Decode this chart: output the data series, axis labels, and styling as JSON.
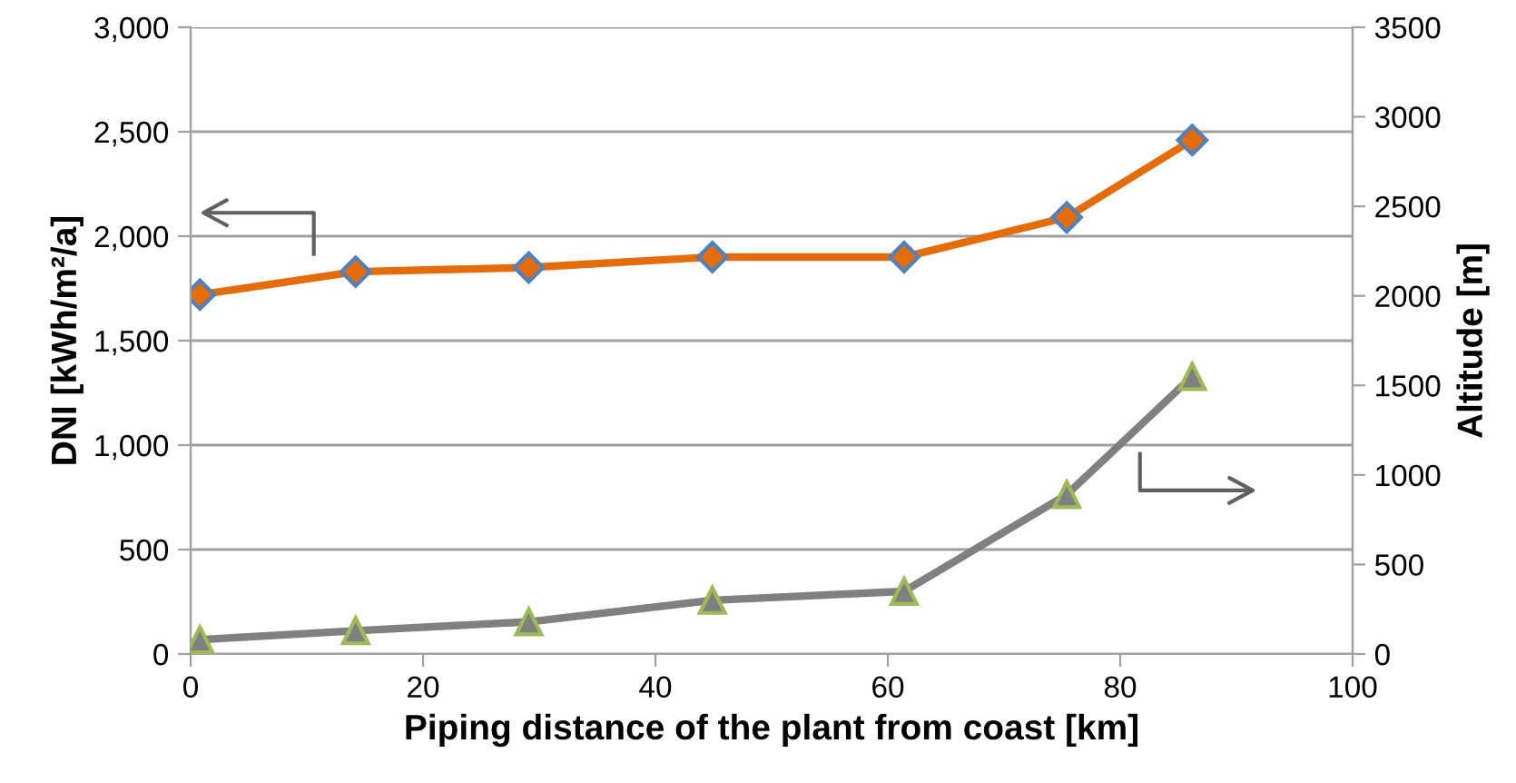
{
  "chart_data": {
    "type": "line",
    "xlabel": "Piping distance of the plant from coast [km]",
    "ylabel": "DNI [kWh/m²/a]",
    "y2label": "Altitude [m]",
    "xlim": [
      0,
      100
    ],
    "xticks": [
      0,
      20,
      40,
      60,
      80,
      100
    ],
    "ylim": [
      0,
      3000
    ],
    "yticks": [
      0,
      500,
      {
        "value": 1000,
        "label": "1,000"
      },
      {
        "value": 1500,
        "label": "1,500"
      },
      {
        "value": 2000,
        "label": "2,000"
      },
      {
        "value": 2500,
        "label": "2,500"
      },
      {
        "value": 3000,
        "label": "3,000"
      }
    ],
    "y2lim": [
      0,
      3500
    ],
    "y2ticks": [
      0,
      500,
      1000,
      1500,
      2000,
      2500,
      3000,
      3500
    ],
    "grid": "y",
    "x": [
      0.8,
      14.2,
      29.1,
      44.9,
      61.4,
      75.4,
      86.2
    ],
    "series": [
      {
        "color": "#e46c0a",
        "marker": "diamond",
        "values": [
          1720,
          1830,
          1850,
          1900,
          1900,
          2090,
          2460
        ]
      },
      {
        "color": "#808080",
        "marker": "triangle",
        "axis": "y2",
        "values": [
          80,
          130,
          180,
          300,
          350,
          890,
          1550
        ]
      }
    ]
  }
}
